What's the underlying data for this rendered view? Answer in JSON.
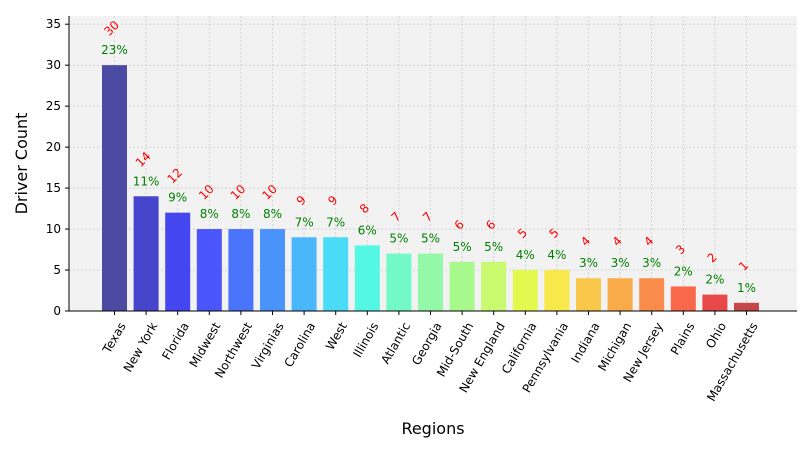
{
  "chart_data": {
    "type": "bar",
    "categories": [
      "Texas",
      "New York",
      "Florida",
      "Midwest",
      "Northwest",
      "Virginias",
      "Carolina",
      "West",
      "Illinois",
      "Atlantic",
      "Georgia",
      "Mid-South",
      "New England",
      "California",
      "Pennsylvania",
      "Indiana",
      "Michigan",
      "New Jersey",
      "Plains",
      "Ohio",
      "Massachusetts"
    ],
    "values": [
      30,
      14,
      12,
      10,
      10,
      10,
      9,
      9,
      8,
      7,
      7,
      6,
      6,
      5,
      5,
      4,
      4,
      4,
      3,
      2,
      1
    ],
    "count_labels": [
      "30",
      "14",
      "12",
      "10",
      "10",
      "10",
      "9",
      "9",
      "8",
      "7",
      "7",
      "6",
      "6",
      "5",
      "5",
      "4",
      "4",
      "4",
      "3",
      "2",
      "1"
    ],
    "percent_labels": [
      "23%",
      "11%",
      "9%",
      "8%",
      "8%",
      "8%",
      "7%",
      "7%",
      "6%",
      "5%",
      "5%",
      "5%",
      "5%",
      "4%",
      "4%",
      "3%",
      "3%",
      "3%",
      "2%",
      "2%",
      "1%"
    ],
    "bar_colors": [
      "#4b4ba4",
      "#4646cc",
      "#4646f0",
      "#4a55fa",
      "#4a74fa",
      "#4a93fa",
      "#4ab7fa",
      "#4adbf6",
      "#54f6e4",
      "#73f9c8",
      "#93f9a8",
      "#a8f98b",
      "#c8f96e",
      "#e4f950",
      "#f9e84a",
      "#f9c84a",
      "#f9ab4a",
      "#f98c4a",
      "#f9684a",
      "#e84848",
      "#c44848"
    ],
    "xlabel": "Regions",
    "ylabel": "Driver Count",
    "ylim": [
      0,
      36
    ],
    "yticks": [
      "0",
      "5",
      "10",
      "15",
      "20",
      "25",
      "30",
      "35"
    ],
    "grid": true,
    "colors": {
      "count_label": "#ff0000",
      "percent_label": "#008000",
      "plot_background": "#f2f2f2",
      "grid": "#cccccc"
    }
  }
}
